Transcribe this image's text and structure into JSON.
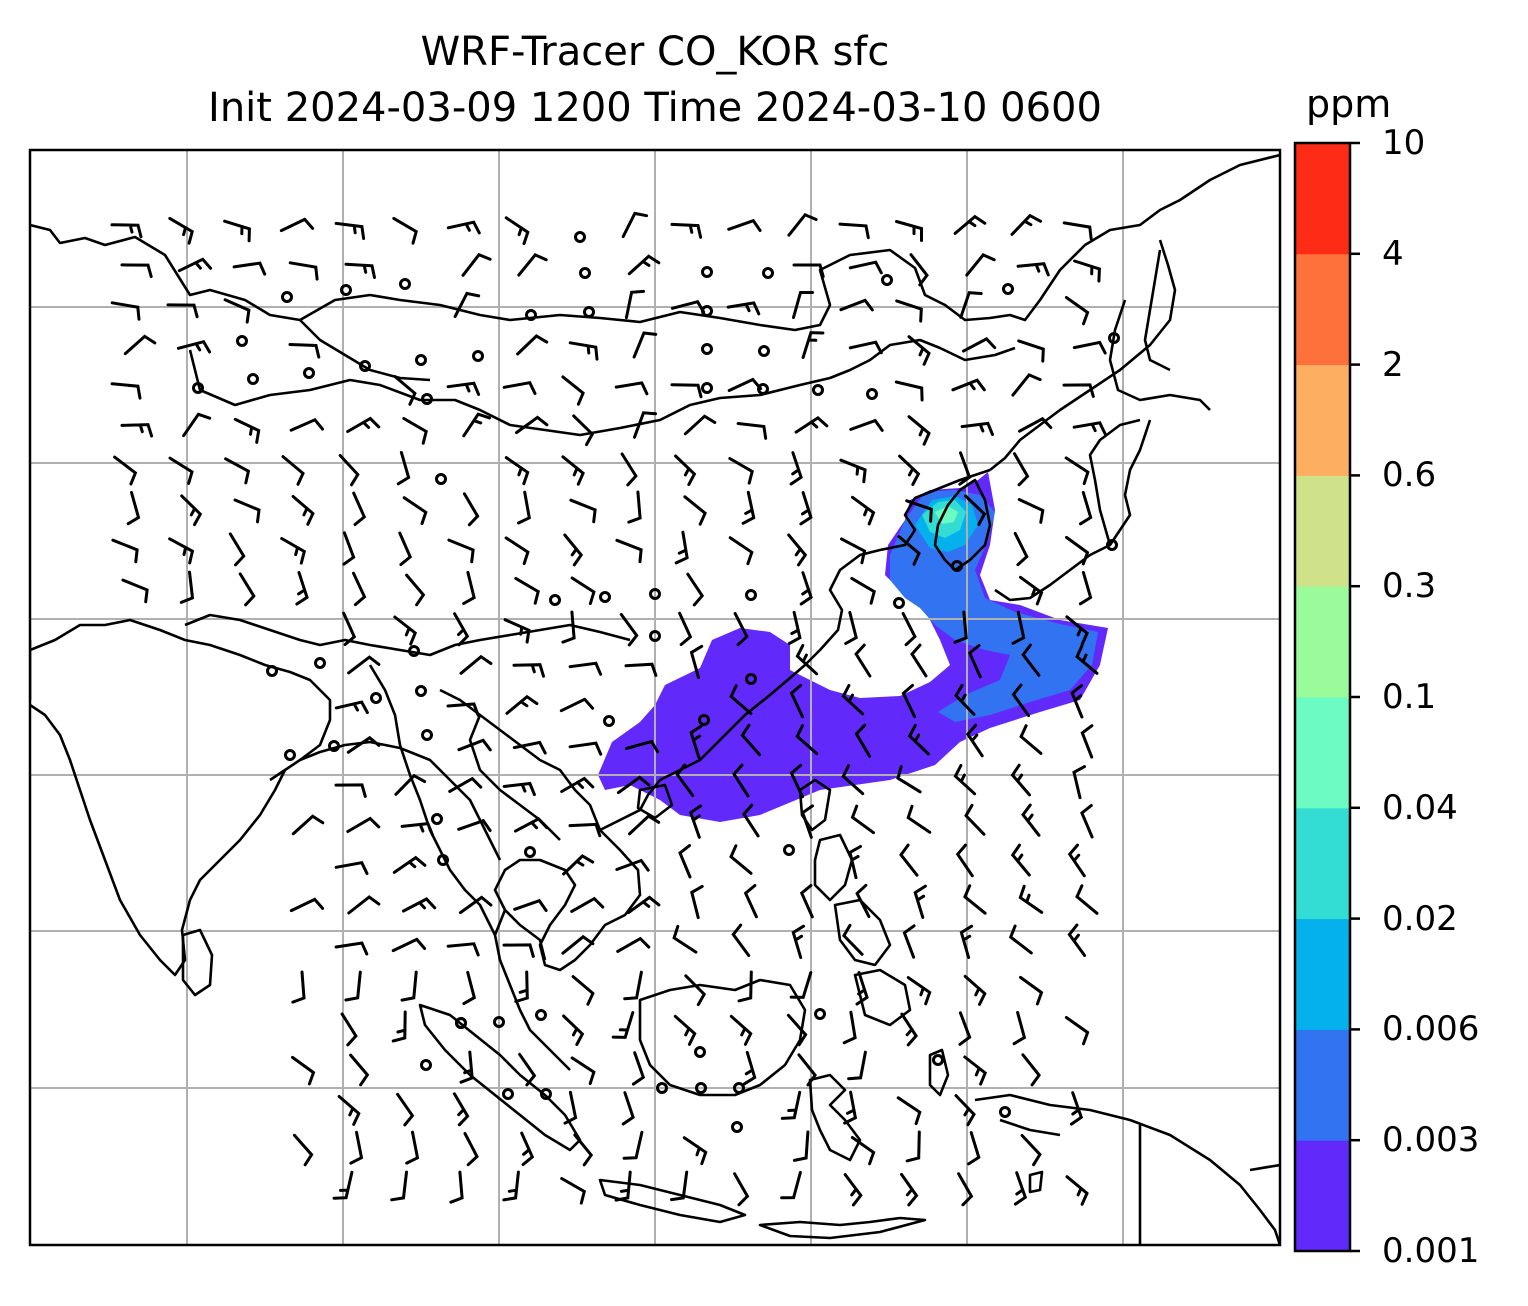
{
  "title": {
    "line1": "WRF-Tracer CO_KOR sfc",
    "line2": "Init 2024-03-09 1200 Time 2024-03-10 0600"
  },
  "colorbar": {
    "unit": "ppm",
    "levels": [
      "0.001",
      "0.003",
      "0.006",
      "0.02",
      "0.04",
      "0.1",
      "0.3",
      "0.6",
      "2",
      "4",
      "10"
    ],
    "colors": [
      "#6229fb",
      "#3273f2",
      "#04b1ec",
      "#33ddd4",
      "#6bfbc3",
      "#9afb9b",
      "#cfe289",
      "#fdae60",
      "#fe713b",
      "#fe2c17"
    ]
  },
  "map": {
    "frame_color": "#000000",
    "gridline_color": "#b0b0b0",
    "coastline_color": "#000000",
    "wind_symbol_color": "#000000",
    "wind_barbs_shown": true,
    "tracer_plume": "CO_KOR surface tracer plume from the Korean peninsula over the Yellow Sea, eastern China and the northern South China Sea"
  }
}
